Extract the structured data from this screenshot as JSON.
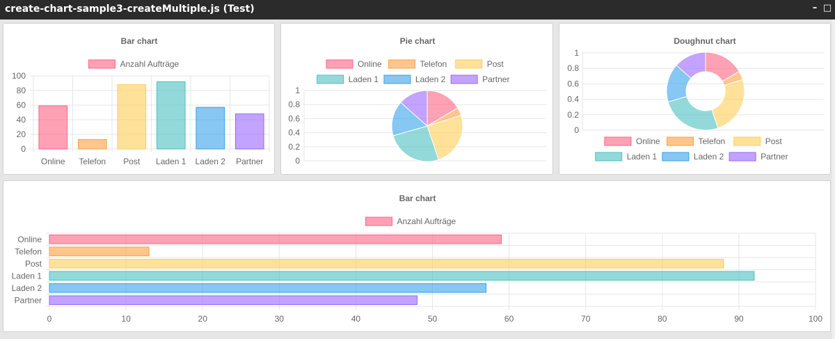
{
  "window": {
    "title": "create-chart-sample3-createMultiple.js (Test)",
    "minimize_label": "–",
    "maximize_label": "□"
  },
  "colors": {
    "background": "#e6e6e6",
    "titlebar": "#2b2b2b",
    "grid": "#e6e6e6",
    "text": "#666666"
  },
  "chart_data": [
    {
      "id": "bar1",
      "type": "bar",
      "title": "Bar chart",
      "legend": [
        "Anzahl Aufträge"
      ],
      "legend_position": "top",
      "categories": [
        "Online",
        "Telefon",
        "Post",
        "Laden 1",
        "Laden 2",
        "Partner"
      ],
      "series": [
        {
          "name": "Anzahl Aufträge",
          "values": [
            59,
            13,
            88,
            92,
            57,
            48
          ]
        }
      ],
      "ylim": [
        0,
        100
      ],
      "yticks": [
        0,
        20,
        40,
        60,
        80,
        100
      ],
      "grid": true,
      "colors": [
        "#ff6384",
        "#ff9f40",
        "#ffcd56",
        "#4bc0c0",
        "#36a2eb",
        "#9966ff"
      ]
    },
    {
      "id": "pie",
      "type": "pie",
      "title": "Pie chart",
      "legend": [
        "Online",
        "Telefon",
        "Post",
        "Laden 1",
        "Laden 2",
        "Partner"
      ],
      "legend_position": "top",
      "categories": [
        "Online",
        "Telefon",
        "Post",
        "Laden 1",
        "Laden 2",
        "Partner"
      ],
      "values": [
        59,
        13,
        88,
        92,
        57,
        48
      ],
      "ylim": [
        0,
        1
      ],
      "yticks": [
        0,
        0.2,
        0.4,
        0.6,
        0.8,
        1
      ],
      "grid": true,
      "colors": [
        "#ff6384",
        "#ff9f40",
        "#ffcd56",
        "#4bc0c0",
        "#36a2eb",
        "#9966ff"
      ]
    },
    {
      "id": "doughnut",
      "type": "doughnut",
      "title": "Doughnut chart",
      "legend": [
        "Online",
        "Telefon",
        "Post",
        "Laden 1",
        "Laden 2",
        "Partner"
      ],
      "legend_position": "bottom",
      "categories": [
        "Online",
        "Telefon",
        "Post",
        "Laden 1",
        "Laden 2",
        "Partner"
      ],
      "values": [
        59,
        13,
        88,
        92,
        57,
        48
      ],
      "ylim": [
        0,
        1
      ],
      "yticks": [
        0,
        0.2,
        0.4,
        0.6,
        0.8,
        1
      ],
      "grid": true,
      "colors": [
        "#ff6384",
        "#ff9f40",
        "#ffcd56",
        "#4bc0c0",
        "#36a2eb",
        "#9966ff"
      ]
    },
    {
      "id": "hbar",
      "type": "bar",
      "orientation": "horizontal",
      "title": "Bar chart",
      "legend": [
        "Anzahl Aufträge"
      ],
      "legend_position": "top",
      "categories": [
        "Online",
        "Telefon",
        "Post",
        "Laden 1",
        "Laden 2",
        "Partner"
      ],
      "series": [
        {
          "name": "Anzahl Aufträge",
          "values": [
            59,
            13,
            88,
            92,
            57,
            48
          ]
        }
      ],
      "xlim": [
        0,
        100
      ],
      "xticks": [
        0,
        10,
        20,
        30,
        40,
        50,
        60,
        70,
        80,
        90,
        100
      ],
      "grid": true,
      "colors": [
        "#ff6384",
        "#ff9f40",
        "#ffcd56",
        "#4bc0c0",
        "#36a2eb",
        "#9966ff"
      ]
    }
  ]
}
